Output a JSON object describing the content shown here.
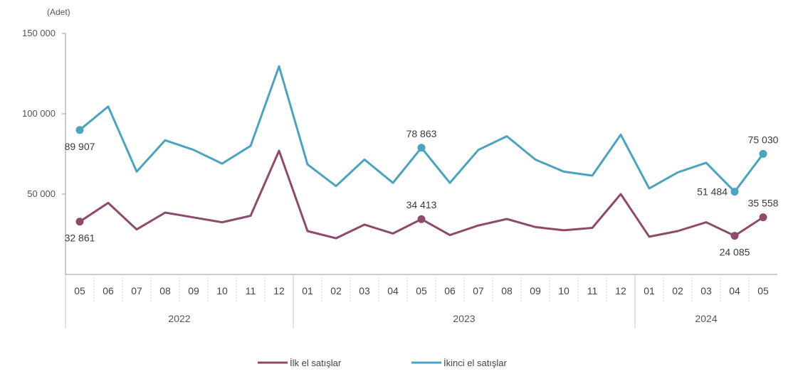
{
  "chart_data": {
    "type": "line",
    "unit_label": "(Adet)",
    "ylim": [
      0,
      150000
    ],
    "yticks": [
      {
        "value": 150000,
        "label": "150 000"
      },
      {
        "value": 100000,
        "label": "100 000"
      },
      {
        "value": 50000,
        "label": "50 000"
      }
    ],
    "categories": [
      "05",
      "06",
      "07",
      "08",
      "09",
      "10",
      "11",
      "12",
      "01",
      "02",
      "03",
      "04",
      "05",
      "06",
      "07",
      "08",
      "09",
      "10",
      "11",
      "12",
      "01",
      "02",
      "03",
      "04",
      "05"
    ],
    "year_groups": [
      {
        "label": "2022",
        "start": 0,
        "end": 7
      },
      {
        "label": "2023",
        "start": 8,
        "end": 19
      },
      {
        "label": "2024",
        "start": 20,
        "end": 24
      }
    ],
    "series": [
      {
        "name": "İlk el satışlar",
        "color": "#8e4a6b",
        "values": [
          32861,
          44500,
          28000,
          38500,
          35500,
          32500,
          36500,
          77000,
          27000,
          22500,
          31000,
          25500,
          34413,
          24500,
          30500,
          34500,
          29500,
          27500,
          29000,
          50000,
          23500,
          27000,
          32500,
          24085,
          35558
        ]
      },
      {
        "name": "İkinci el satışlar",
        "color": "#4aa3bf",
        "values": [
          89907,
          104500,
          64000,
          83500,
          77500,
          69000,
          80000,
          129500,
          68500,
          55000,
          71500,
          57000,
          78863,
          57000,
          77500,
          86000,
          71500,
          64000,
          61500,
          87000,
          53500,
          63500,
          69500,
          51484,
          75030
        ]
      }
    ],
    "data_labels": [
      {
        "series": 1,
        "index": 0,
        "text": "89 907",
        "pos": "below"
      },
      {
        "series": 1,
        "index": 12,
        "text": "78 863",
        "pos": "above"
      },
      {
        "series": 1,
        "index": 23,
        "text": "51 484",
        "pos": "left"
      },
      {
        "series": 1,
        "index": 24,
        "text": "75 030",
        "pos": "above"
      },
      {
        "series": 0,
        "index": 0,
        "text": "32 861",
        "pos": "below"
      },
      {
        "series": 0,
        "index": 12,
        "text": "34 413",
        "pos": "above"
      },
      {
        "series": 0,
        "index": 23,
        "text": "24 085",
        "pos": "below"
      },
      {
        "series": 0,
        "index": 24,
        "text": "35 558",
        "pos": "above"
      }
    ],
    "legend": {
      "placement": "bottom-center",
      "entries": [
        "İlk el satışlar",
        "İkinci el satışlar"
      ]
    },
    "grid": false
  }
}
